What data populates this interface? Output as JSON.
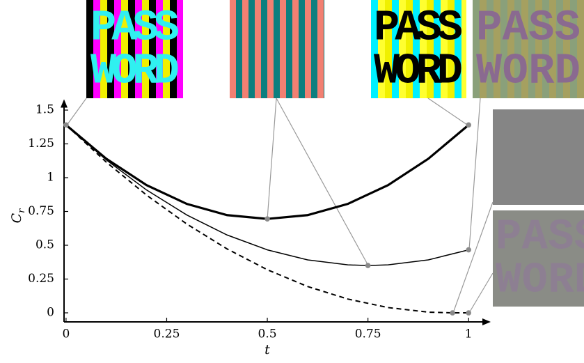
{
  "chart_data": {
    "type": "line",
    "xlabel": "t",
    "ylabel": "C",
    "ylabel_subscript": "r",
    "xlim": [
      -0.005,
      1.055
    ],
    "ylim": [
      -0.067,
      1.58
    ],
    "xticks": [
      0,
      0.25,
      0.5,
      0.75,
      1
    ],
    "yticks": [
      0,
      0.25,
      0.5,
      0.75,
      1,
      1.25,
      1.5
    ],
    "series": [
      {
        "color": "#000000",
        "style": "thick",
        "x": [
          0,
          0.1,
          0.2,
          0.3,
          0.4,
          0.5,
          0.6,
          0.7,
          0.8,
          0.9,
          1
        ],
        "values": [
          1.39,
          1.14,
          0.945,
          0.806,
          0.723,
          0.695,
          0.723,
          0.806,
          0.945,
          1.14,
          1.39
        ]
      },
      {
        "color": "#000000",
        "style": "thin",
        "x": [
          0,
          0.1,
          0.2,
          0.3,
          0.4,
          0.5,
          0.6,
          0.7,
          0.75,
          0.8,
          0.9,
          1
        ],
        "values": [
          1.39,
          1.131,
          0.909,
          0.724,
          0.576,
          0.466,
          0.392,
          0.355,
          0.35,
          0.355,
          0.392,
          0.466
        ]
      },
      {
        "color": "#000000",
        "style": "dashed",
        "x": [
          0,
          0.1,
          0.2,
          0.3,
          0.4,
          0.5,
          0.6,
          0.7,
          0.8,
          0.9,
          0.96,
          1
        ],
        "values": [
          1.39,
          1.115,
          0.871,
          0.657,
          0.473,
          0.319,
          0.195,
          0.102,
          0.039,
          0.005,
          0,
          0
        ]
      }
    ],
    "points": {
      "color": "#8a8a8a",
      "x": [
        0,
        0.5,
        0.75,
        1,
        1,
        0.96,
        1
      ],
      "values": [
        1.39,
        0.695,
        0.35,
        1.39,
        0.466,
        0,
        0
      ]
    },
    "image_text": [
      "PASS",
      "WORD"
    ]
  }
}
